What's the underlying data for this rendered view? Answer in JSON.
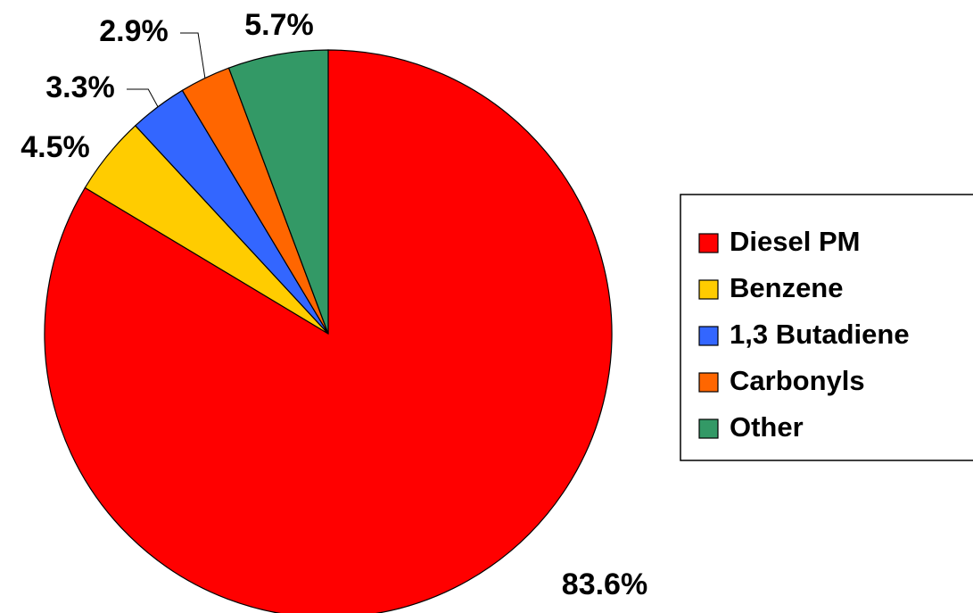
{
  "chart_data": {
    "type": "pie",
    "categories": [
      "Diesel PM",
      "Benzene",
      "1,3 Butadiene",
      "Carbonyls",
      "Other"
    ],
    "values": [
      83.6,
      4.5,
      3.3,
      2.9,
      5.7
    ],
    "value_labels": [
      "83.6%",
      "4.5%",
      "3.3%",
      "2.9%",
      "5.7%"
    ],
    "colors": [
      "#ff0000",
      "#ffcc00",
      "#3366ff",
      "#ff6600",
      "#339966"
    ],
    "legend": "right"
  }
}
